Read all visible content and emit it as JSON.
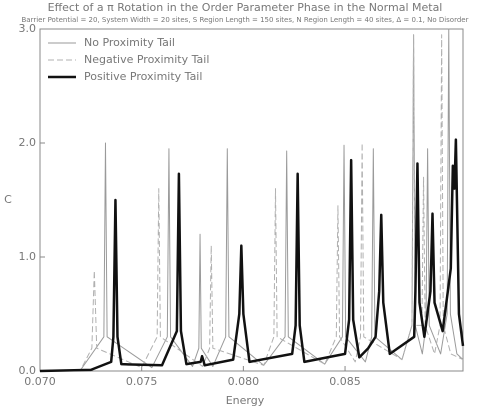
{
  "chart_data": {
    "type": "line",
    "title": "Effect of a π Rotation in the Order Parameter Phase in the Normal Metal",
    "subtitle": "Barrier Potential = 20, System Width = 20 sites, S Region Length = 150 sites, N Region Length = 40 sites, Δ = 0.1, No Disorder",
    "x_label": "Energy",
    "y_label": "C",
    "xlim": [
      0.07,
      0.0908
    ],
    "ylim": [
      0,
      3
    ],
    "xticks": [
      {
        "value": 0.07,
        "label": "0.070"
      },
      {
        "value": 0.075,
        "label": "0.075"
      },
      {
        "value": 0.08,
        "label": "0.080"
      },
      {
        "value": 0.085,
        "label": "0.085"
      }
    ],
    "yticks": [
      {
        "value": 0,
        "label": "0.0"
      },
      {
        "value": 1,
        "label": "1.0"
      },
      {
        "value": 2,
        "label": "2.0"
      },
      {
        "value": 3,
        "label": "3.0"
      }
    ],
    "legend": "upper left",
    "series": [
      {
        "name": "No Proximity Tail",
        "color": "#9a9a9a",
        "line_style": "solid",
        "line_width": 1,
        "x": [
          0.07,
          0.072,
          0.07314,
          0.07322,
          0.0733,
          0.0755,
          0.07626,
          0.07634,
          0.07642,
          0.0775,
          0.07781,
          0.07787,
          0.07793,
          0.0785,
          0.07913,
          0.07921,
          0.07929,
          0.081,
          0.08205,
          0.08213,
          0.08221,
          0.084,
          0.08487,
          0.08495,
          0.08503,
          0.086,
          0.08631,
          0.08639,
          0.08647,
          0.0878,
          0.08829,
          0.08837,
          0.08845,
          0.0888,
          0.08898,
          0.08906,
          0.08914,
          0.0897,
          0.09002,
          0.0901,
          0.09018,
          0.0905,
          0.0908
        ],
        "values": [
          0,
          0.01,
          0.3,
          2.0,
          0.3,
          0.03,
          0.3,
          1.95,
          0.3,
          0.04,
          0.2,
          1.2,
          0.2,
          0.04,
          0.3,
          1.95,
          0.3,
          0.05,
          0.3,
          1.93,
          0.3,
          0.06,
          0.3,
          1.98,
          0.3,
          0.08,
          0.3,
          1.95,
          0.3,
          0.1,
          0.4,
          2.95,
          0.4,
          0.15,
          0.4,
          1.95,
          0.4,
          0.15,
          0.5,
          3.0,
          0.5,
          0.15,
          0.1
        ]
      },
      {
        "name": "Negative Proximity Tail",
        "color": "#b0b0b0",
        "line_style": "dashed",
        "line_width": 1,
        "x": [
          0.07,
          0.072,
          0.07255,
          0.07267,
          0.07279,
          0.075,
          0.07576,
          0.07584,
          0.07592,
          0.078,
          0.07834,
          0.07842,
          0.0785,
          0.081,
          0.0815,
          0.08158,
          0.08166,
          0.084,
          0.08457,
          0.08465,
          0.08473,
          0.0855,
          0.08576,
          0.08584,
          0.08592,
          0.0878,
          0.08829,
          0.08837,
          0.08845,
          0.08878,
          0.08886,
          0.08894,
          0.0894,
          0.08967,
          0.08975,
          0.08983,
          0.0902,
          0.0908
        ],
        "values": [
          0,
          0.01,
          0.2,
          0.88,
          0.2,
          0.03,
          0.3,
          1.6,
          0.3,
          0.04,
          0.2,
          1.1,
          0.2,
          0.05,
          0.3,
          1.6,
          0.3,
          0.06,
          0.3,
          1.45,
          0.3,
          0.08,
          0.3,
          2.0,
          0.3,
          0.1,
          0.4,
          2.95,
          0.4,
          0.4,
          1.7,
          0.4,
          0.15,
          0.4,
          2.95,
          0.4,
          0.15,
          0.1
        ]
      },
      {
        "name": "Positive Proximity Tail",
        "color": "#111111",
        "line_style": "solid",
        "line_width": 2.5,
        "x": [
          0.07,
          0.0725,
          0.0735,
          0.07361,
          0.07371,
          0.07381,
          0.074,
          0.076,
          0.07673,
          0.07683,
          0.07693,
          0.0772,
          0.0779,
          0.07797,
          0.0781,
          0.0795,
          0.0798,
          0.0799,
          0.08,
          0.0803,
          0.0824,
          0.08257,
          0.08267,
          0.08277,
          0.083,
          0.085,
          0.0852,
          0.0853,
          0.0854,
          0.0857,
          0.08614,
          0.0865,
          0.08668,
          0.08678,
          0.08688,
          0.0872,
          0.0884,
          0.08846,
          0.08856,
          0.08866,
          0.0889,
          0.0892,
          0.0893,
          0.0894,
          0.0898,
          0.0902,
          0.0903,
          0.09038,
          0.09045,
          0.0906,
          0.0908
        ],
        "values": [
          0,
          0.01,
          0.08,
          0.3,
          1.5,
          0.3,
          0.06,
          0.05,
          0.35,
          1.73,
          0.35,
          0.06,
          0.08,
          0.13,
          0.05,
          0.1,
          0.5,
          1.1,
          0.5,
          0.08,
          0.15,
          0.4,
          1.73,
          0.4,
          0.08,
          0.15,
          0.45,
          1.85,
          0.45,
          0.12,
          0.2,
          0.3,
          0.7,
          1.37,
          0.6,
          0.15,
          0.3,
          0.7,
          1.82,
          0.6,
          0.3,
          0.7,
          1.38,
          0.6,
          0.35,
          0.9,
          1.8,
          1.6,
          2.03,
          0.5,
          0.22
        ]
      }
    ]
  }
}
